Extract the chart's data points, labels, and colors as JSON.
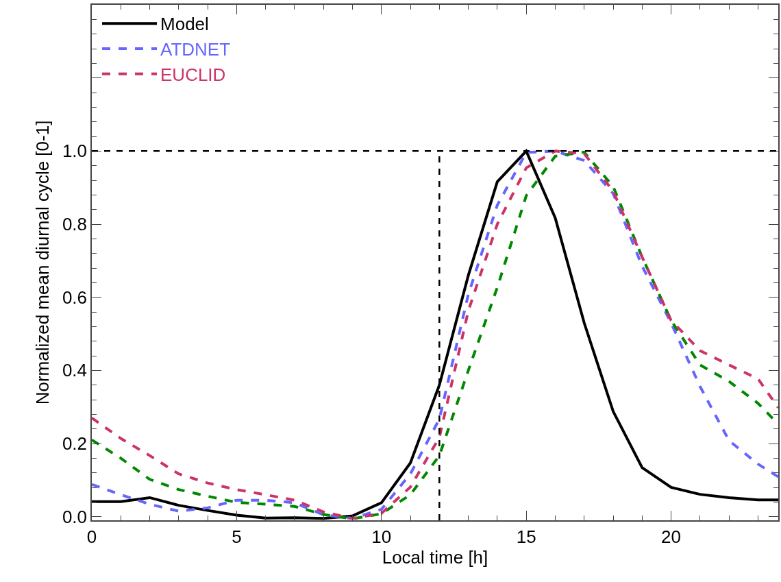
{
  "chart_data": {
    "type": "line",
    "xlabel": "Local time [h]",
    "ylabel": "Normalized mean diurnal cycle [0-1]",
    "x": [
      0,
      1,
      2,
      3,
      4,
      5,
      6,
      7,
      8,
      9,
      10,
      11,
      12,
      13,
      14,
      15,
      16,
      17,
      18,
      19,
      20,
      21,
      22,
      23,
      23.7
    ],
    "series": [
      {
        "name": "Model",
        "color": "#000000",
        "line_style": "solid",
        "values": [
          0.041,
          0.041,
          0.052,
          0.031,
          0.017,
          0.004,
          -0.004,
          -0.003,
          -0.005,
          0.002,
          0.038,
          0.147,
          0.36,
          0.66,
          0.916,
          1.0,
          0.817,
          0.53,
          0.288,
          0.134,
          0.08,
          0.061,
          0.052,
          0.046,
          0.046
        ]
      },
      {
        "name": "ATDNET",
        "color": "#6666ff",
        "line_style": "dashed",
        "values": [
          0.088,
          0.06,
          0.034,
          0.015,
          0.024,
          0.045,
          0.045,
          0.038,
          0.005,
          -0.005,
          0.02,
          0.117,
          0.267,
          0.608,
          0.852,
          0.996,
          1.0,
          0.974,
          0.884,
          0.685,
          0.53,
          0.356,
          0.208,
          0.144,
          0.109
        ]
      },
      {
        "color": "#008800",
        "line_style": "dashed",
        "values": [
          0.21,
          0.16,
          0.102,
          0.074,
          0.056,
          0.039,
          0.034,
          0.028,
          0.006,
          -0.006,
          0.008,
          0.06,
          0.167,
          0.4,
          0.627,
          0.878,
          0.986,
          0.997,
          0.903,
          0.71,
          0.537,
          0.415,
          0.37,
          0.31,
          0.253
        ]
      },
      {
        "name": "EUCLID",
        "color": "#cc3366",
        "line_style": "dashed",
        "values": [
          0.27,
          0.214,
          0.167,
          0.117,
          0.092,
          0.074,
          0.06,
          0.045,
          0.013,
          -0.005,
          0.009,
          0.081,
          0.217,
          0.563,
          0.8,
          0.954,
          1.0,
          0.993,
          0.89,
          0.71,
          0.537,
          0.454,
          0.415,
          0.377,
          0.298
        ]
      }
    ],
    "xlim": [
      0,
      23.7
    ],
    "xticks": [
      0,
      5,
      10,
      15,
      20
    ],
    "ylim": [
      -0.01,
      1.4
    ],
    "yticks": [
      {
        "value": 0,
        "label": "0.0"
      },
      0.2,
      0.4,
      0.6,
      0.8,
      {
        "value": 1,
        "label": "1.0"
      },
      {
        "value": 1.2,
        "label": null
      },
      {
        "value": 1.4,
        "label": null
      }
    ],
    "ref_lines": [
      {
        "axis": "y",
        "value": 1.0,
        "label": null,
        "color": "#000000",
        "line_style": "dashed"
      },
      {
        "axis": "x",
        "value": 12,
        "label": null,
        "color": "#000000",
        "line_style": "dashed"
      }
    ],
    "legend": "top left",
    "marker": "none"
  }
}
